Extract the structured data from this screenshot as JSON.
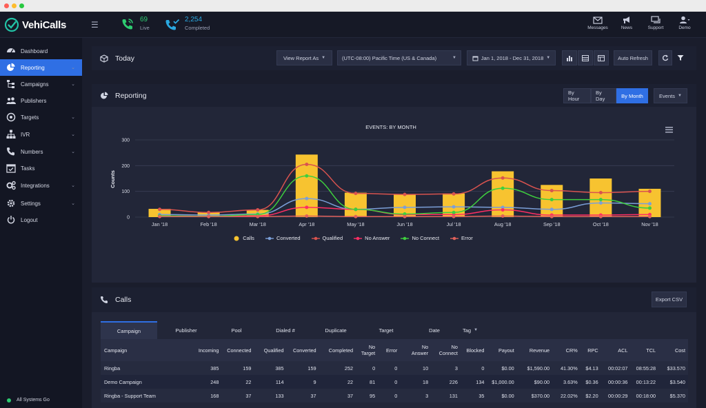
{
  "app": {
    "name": "VehiCalls",
    "brand_color": "#22c3a6",
    "accent": "#2f6fe4"
  },
  "topbar": {
    "live": {
      "value": "69",
      "label": "Live"
    },
    "completed": {
      "value": "2,254",
      "label": "Completed"
    },
    "right": [
      {
        "label": "Messages",
        "icon": "envelope-icon"
      },
      {
        "label": "News",
        "icon": "megaphone-icon"
      },
      {
        "label": "Support",
        "icon": "chat-icon"
      },
      {
        "label": "Demo",
        "icon": "user-icon"
      }
    ]
  },
  "sidebar": {
    "items": [
      {
        "label": "Dashboard",
        "icon": "dashboard-icon",
        "chevron": false,
        "active": false
      },
      {
        "label": "Reporting",
        "icon": "pie-chart-icon",
        "chevron": true,
        "active": true
      },
      {
        "label": "Campaigns",
        "icon": "sitemap-icon",
        "chevron": true,
        "active": false
      },
      {
        "label": "Publishers",
        "icon": "users-icon",
        "chevron": false,
        "active": false
      },
      {
        "label": "Targets",
        "icon": "target-icon",
        "chevron": true,
        "active": false
      },
      {
        "label": "IVR",
        "icon": "hierarchy-icon",
        "chevron": true,
        "active": false
      },
      {
        "label": "Numbers",
        "icon": "phone-icon",
        "chevron": true,
        "active": false
      },
      {
        "label": "Tasks",
        "icon": "calendar-check-icon",
        "chevron": false,
        "active": false
      },
      {
        "label": "Integrations",
        "icon": "cogs-icon",
        "chevron": true,
        "active": false
      },
      {
        "label": "Settings",
        "icon": "gear-icon",
        "chevron": true,
        "active": false
      },
      {
        "label": "Logout",
        "icon": "power-icon",
        "chevron": false,
        "active": false
      }
    ],
    "status": "All Systems Go"
  },
  "today": {
    "title": "Today",
    "view_report": "View Report As",
    "timezone": "(UTC-08:00) Pacific Time (US & Canada)",
    "date_range": "Jan 1, 2018 - Dec 31, 2018",
    "auto_refresh": "Auto Refresh"
  },
  "reporting": {
    "title": "Reporting",
    "by_hour": "By Hour",
    "by_day": "By Day",
    "by_month": "By Month",
    "events": "Events"
  },
  "chart_data": {
    "type": "bar",
    "title": "EVENTS: BY MONTH",
    "ylabel": "Counts",
    "xlabel": "",
    "ylim": [
      0,
      300
    ],
    "yticks": [
      "0",
      "100",
      "200",
      "300"
    ],
    "categories": [
      "Jan '18",
      "Feb '18",
      "Mar '18",
      "Apr '18",
      "May '18",
      "Jun '18",
      "Jul '18",
      "Aug '18",
      "Sep '18",
      "Oct '18",
      "Nov '18"
    ],
    "series": [
      {
        "name": "Calls",
        "kind": "bar",
        "color": "#f7c330",
        "values": [
          32,
          18,
          28,
          243,
          95,
          88,
          92,
          178,
          125,
          150,
          110
        ]
      },
      {
        "name": "Converted",
        "kind": "line",
        "color": "#7b9fd8",
        "values": [
          10,
          8,
          12,
          72,
          30,
          38,
          40,
          38,
          30,
          55,
          52
        ]
      },
      {
        "name": "Qualified",
        "kind": "line",
        "color": "#d9534f",
        "values": [
          30,
          18,
          28,
          205,
          92,
          88,
          90,
          152,
          103,
          95,
          100
        ]
      },
      {
        "name": "No Answer",
        "kind": "line",
        "color": "#ff2e63",
        "values": [
          5,
          3,
          5,
          38,
          30,
          10,
          10,
          28,
          8,
          8,
          10
        ]
      },
      {
        "name": "No Connect",
        "kind": "line",
        "color": "#3ecf3e",
        "values": [
          5,
          3,
          10,
          160,
          30,
          12,
          18,
          112,
          68,
          68,
          35
        ]
      },
      {
        "name": "Error",
        "kind": "line",
        "color": "#e0605a",
        "values": [
          2,
          2,
          2,
          4,
          2,
          2,
          2,
          4,
          2,
          2,
          2
        ]
      }
    ],
    "legend": "bottom-center",
    "grid": true
  },
  "calls": {
    "title": "Calls",
    "export": "Export CSV",
    "tabs": [
      "Campaign",
      "Publisher",
      "Pool",
      "Dialed #",
      "Duplicate",
      "Target",
      "Date",
      "Tag"
    ],
    "columns": [
      [
        "Campaign"
      ],
      [
        "Incoming"
      ],
      [
        "Connected"
      ],
      [
        "Qualified"
      ],
      [
        "Converted"
      ],
      [
        "Completed"
      ],
      [
        "No",
        "Target"
      ],
      [
        "Error"
      ],
      [
        "No",
        "Answer"
      ],
      [
        "No",
        "Connect"
      ],
      [
        "Blocked"
      ],
      [
        "Payout"
      ],
      [
        "Revenue"
      ],
      [
        "CR%"
      ],
      [
        "RPC"
      ],
      [
        "ACL"
      ],
      [
        "TCL"
      ],
      [
        "Cost"
      ]
    ],
    "rows": [
      [
        "Ringba",
        "385",
        "159",
        "385",
        "159",
        "252",
        "0",
        "0",
        "10",
        "3",
        "0",
        "$0.00",
        "$1,590.00",
        "41.30%",
        "$4.13",
        "00:02:07",
        "08:55:28",
        "$33.570"
      ],
      [
        "Demo Campaign",
        "248",
        "22",
        "114",
        "9",
        "22",
        "81",
        "0",
        "18",
        "226",
        "134",
        "$1,000.00",
        "$90.00",
        "3.63%",
        "$0.36",
        "00:00:36",
        "00:13:22",
        "$3.540"
      ],
      [
        "Ringba - Support Team",
        "168",
        "37",
        "133",
        "37",
        "37",
        "95",
        "0",
        "3",
        "131",
        "35",
        "$0.00",
        "$370.00",
        "22.02%",
        "$2.20",
        "00:00:29",
        "00:18:00",
        "$5.370"
      ]
    ]
  }
}
